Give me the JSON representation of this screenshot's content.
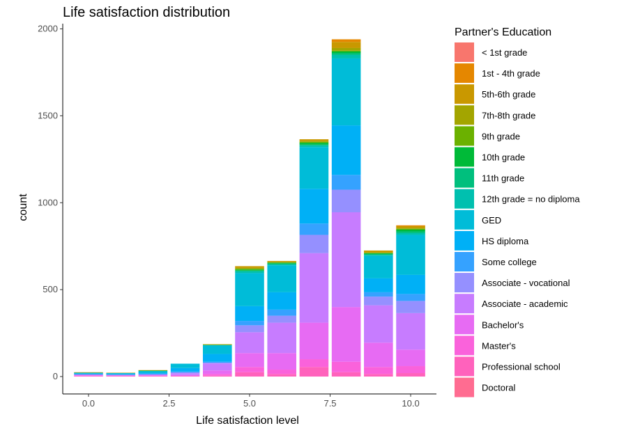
{
  "chart_data": {
    "type": "bar",
    "stacked": true,
    "title": "Life satisfaction distribution",
    "xlabel": "Life satisfaction level",
    "ylabel": "count",
    "xlim": [
      -0.8,
      10.8
    ],
    "ylim": [
      -100,
      2030
    ],
    "x_ticks": [
      0.0,
      2.5,
      5.0,
      7.5,
      10.0
    ],
    "x_tick_labels": [
      "0.0",
      "2.5",
      "5.0",
      "7.5",
      "10.0"
    ],
    "y_ticks": [
      0,
      500,
      1000,
      1500,
      2000
    ],
    "y_tick_labels": [
      "0",
      "500",
      "1000",
      "1500",
      "2000"
    ],
    "grid": false,
    "legend_title": "Partner's Education",
    "legend_position": "right",
    "x": [
      0,
      1,
      2,
      3,
      4,
      5,
      6,
      7,
      8,
      9,
      10
    ],
    "series": [
      {
        "name": "< 1st grade",
        "color": "#F8766D",
        "values": [
          0,
          0,
          0,
          0,
          0,
          0,
          0,
          0,
          0,
          0,
          0
        ]
      },
      {
        "name": "1st - 4th grade",
        "color": "#E58700",
        "values": [
          0,
          0,
          0,
          0,
          0,
          0,
          0,
          0,
          15,
          0,
          5
        ]
      },
      {
        "name": "5th-6th grade",
        "color": "#C99800",
        "values": [
          3,
          2,
          3,
          0,
          3,
          10,
          5,
          10,
          35,
          10,
          10
        ]
      },
      {
        "name": "7th-8th grade",
        "color": "#A3A500",
        "values": [
          0,
          0,
          0,
          0,
          0,
          5,
          5,
          5,
          15,
          5,
          5
        ]
      },
      {
        "name": "9th grade",
        "color": "#6BB100",
        "values": [
          0,
          0,
          0,
          0,
          0,
          5,
          0,
          5,
          5,
          0,
          5
        ]
      },
      {
        "name": "10th grade",
        "color": "#00BA38",
        "values": [
          0,
          0,
          2,
          0,
          3,
          5,
          5,
          10,
          10,
          5,
          10
        ]
      },
      {
        "name": "11th grade",
        "color": "#00BF7D",
        "values": [
          0,
          0,
          0,
          0,
          0,
          5,
          5,
          5,
          10,
          5,
          10
        ]
      },
      {
        "name": "12th grade = no diploma",
        "color": "#00C0AF",
        "values": [
          0,
          0,
          0,
          0,
          0,
          10,
          5,
          10,
          20,
          5,
          10
        ]
      },
      {
        "name": "GED",
        "color": "#00BCD8",
        "values": [
          5,
          5,
          10,
          25,
          50,
          190,
          155,
          240,
          385,
          130,
          230
        ]
      },
      {
        "name": "HS diploma",
        "color": "#00B0F6",
        "values": [
          5,
          5,
          5,
          20,
          45,
          85,
          100,
          200,
          285,
          80,
          110
        ]
      },
      {
        "name": "Some college",
        "color": "#35A2FF",
        "values": [
          0,
          0,
          5,
          5,
          5,
          25,
          35,
          65,
          85,
          25,
          40
        ]
      },
      {
        "name": "Associate - vocational",
        "color": "#9590FF",
        "values": [
          0,
          0,
          0,
          5,
          5,
          40,
          40,
          105,
          130,
          50,
          70
        ]
      },
      {
        "name": "Associate - academic",
        "color": "#C77CFF",
        "values": [
          5,
          3,
          5,
          10,
          40,
          120,
          175,
          400,
          545,
          215,
          210
        ]
      },
      {
        "name": "Bachelor's",
        "color": "#E76BF3",
        "values": [
          3,
          3,
          3,
          5,
          20,
          80,
          95,
          210,
          315,
          140,
          95
        ]
      },
      {
        "name": "Master's",
        "color": "#FA62DB",
        "values": [
          2,
          2,
          2,
          2,
          10,
          30,
          25,
          45,
          60,
          40,
          40
        ]
      },
      {
        "name": "Professional school",
        "color": "#FF62BC",
        "values": [
          2,
          2,
          2,
          2,
          5,
          25,
          15,
          55,
          25,
          15,
          20
        ]
      },
      {
        "name": "Doctoral",
        "color": "#FF6C91",
        "values": [
          0,
          0,
          0,
          0,
          0,
          0,
          0,
          0,
          0,
          0,
          0
        ]
      }
    ]
  }
}
